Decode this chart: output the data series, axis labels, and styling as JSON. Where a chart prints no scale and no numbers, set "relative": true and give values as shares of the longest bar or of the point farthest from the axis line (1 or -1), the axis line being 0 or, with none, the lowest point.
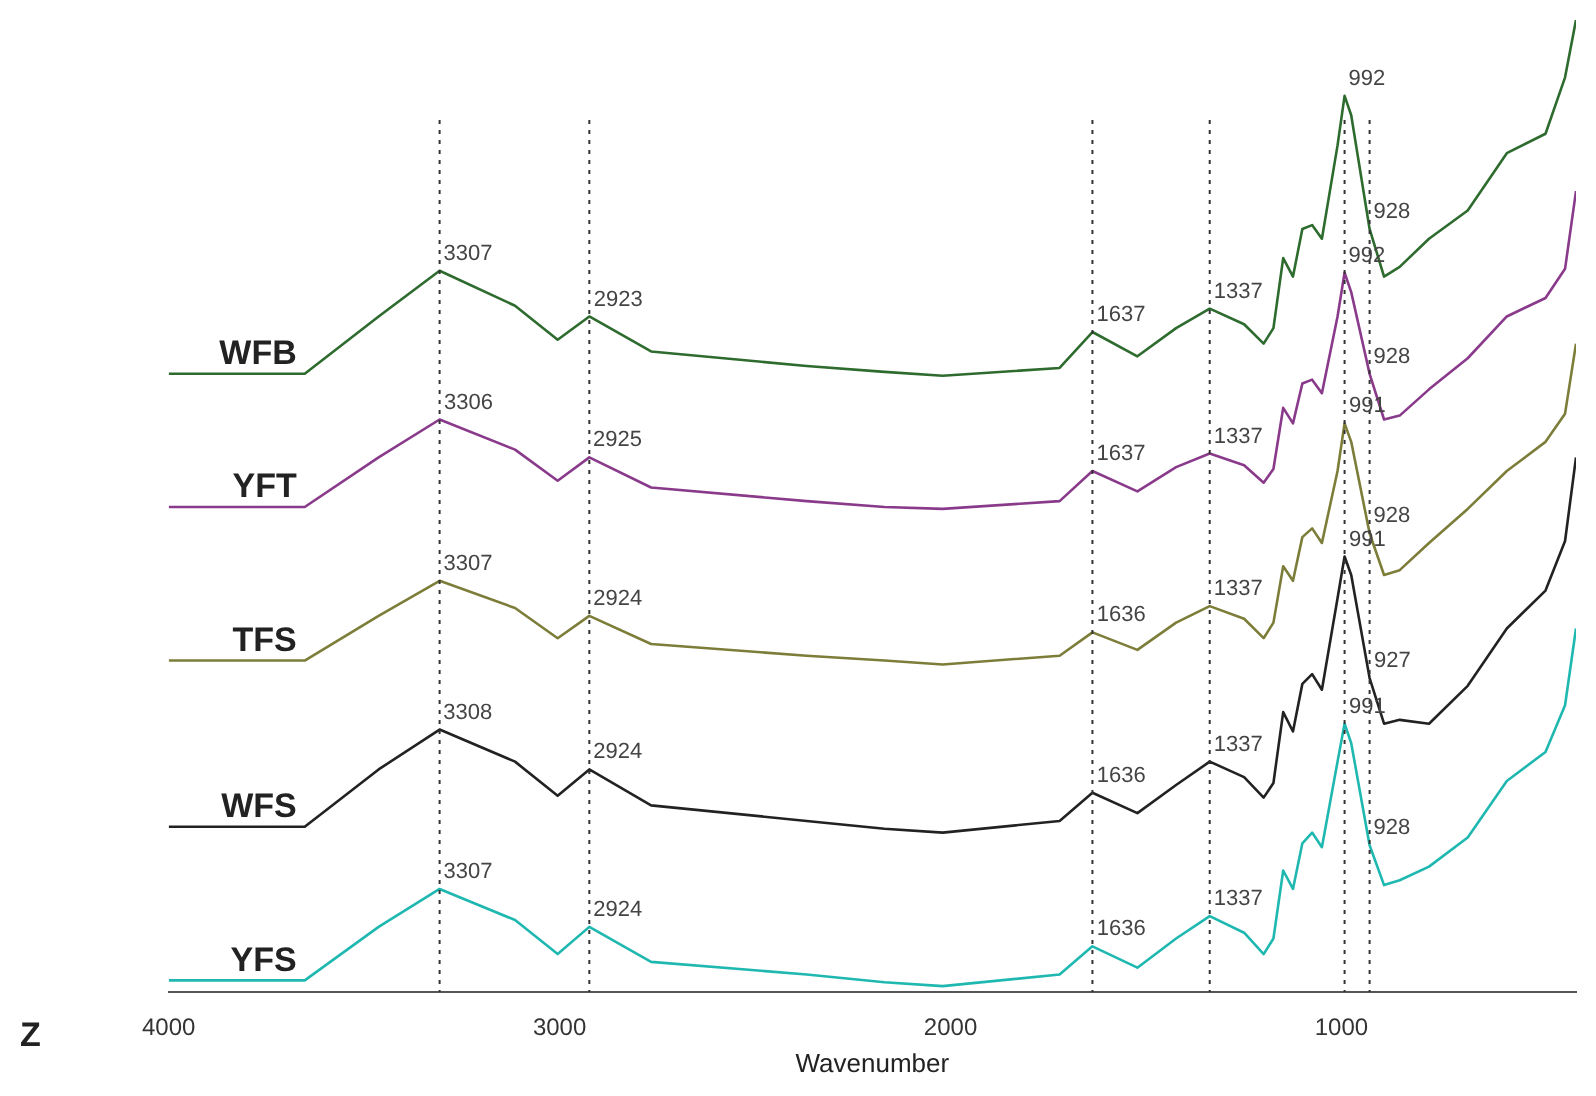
{
  "chart_data": {
    "type": "line",
    "xlabel": "Wavenumber",
    "relative": true,
    "xlim": [
      4000,
      400
    ],
    "xticks": [
      4000,
      3000,
      2000,
      1000
    ],
    "grid": false,
    "legend": false,
    "marker": "none",
    "line_style": "solid",
    "x": [
      4000,
      3652,
      3463,
      3307,
      3114,
      3005,
      2924,
      2766,
      2368,
      2169,
      2020,
      1721,
      1637,
      1522,
      1423,
      1337,
      1249,
      1199,
      1174,
      1149,
      1124,
      1100,
      1075,
      1050,
      1010,
      992,
      975,
      928,
      891,
      851,
      776,
      677,
      577,
      478,
      428,
      400
    ],
    "series": [
      {
        "name": "WFB",
        "color": "#2e6b2e",
        "values": [
          0.636,
          0.636,
          0.695,
          0.742,
          0.706,
          0.671,
          0.695,
          0.659,
          0.644,
          0.638,
          0.634,
          0.642,
          0.679,
          0.654,
          0.683,
          0.703,
          0.687,
          0.667,
          0.683,
          0.755,
          0.736,
          0.785,
          0.789,
          0.775,
          0.871,
          0.922,
          0.902,
          0.785,
          0.736,
          0.746,
          0.775,
          0.804,
          0.863,
          0.883,
          0.941,
          1.0
        ]
      },
      {
        "name": "YFT",
        "color": "#8a3a8a",
        "values": [
          0.499,
          0.499,
          0.55,
          0.589,
          0.558,
          0.526,
          0.55,
          0.519,
          0.505,
          0.499,
          0.497,
          0.505,
          0.536,
          0.515,
          0.54,
          0.554,
          0.542,
          0.524,
          0.538,
          0.601,
          0.585,
          0.626,
          0.63,
          0.616,
          0.695,
          0.74,
          0.72,
          0.636,
          0.589,
          0.593,
          0.62,
          0.652,
          0.695,
          0.714,
          0.744,
          0.824
        ]
      },
      {
        "name": "TFS",
        "color": "#7d7d3a",
        "values": [
          0.341,
          0.341,
          0.387,
          0.423,
          0.395,
          0.364,
          0.387,
          0.358,
          0.346,
          0.341,
          0.337,
          0.346,
          0.37,
          0.352,
          0.38,
          0.397,
          0.384,
          0.364,
          0.38,
          0.438,
          0.423,
          0.468,
          0.477,
          0.462,
          0.536,
          0.585,
          0.566,
          0.472,
          0.429,
          0.434,
          0.462,
          0.497,
          0.536,
          0.566,
          0.595,
          0.667
        ]
      },
      {
        "name": "WFS",
        "color": "#222222",
        "values": [
          0.17,
          0.17,
          0.229,
          0.27,
          0.237,
          0.202,
          0.229,
          0.192,
          0.176,
          0.168,
          0.164,
          0.176,
          0.205,
          0.184,
          0.213,
          0.237,
          0.221,
          0.2,
          0.215,
          0.288,
          0.268,
          0.317,
          0.327,
          0.311,
          0.405,
          0.448,
          0.429,
          0.323,
          0.276,
          0.28,
          0.276,
          0.315,
          0.374,
          0.413,
          0.464,
          0.55
        ]
      },
      {
        "name": "YFS",
        "color": "#1fb8b0",
        "values": [
          0.012,
          0.012,
          0.067,
          0.106,
          0.074,
          0.039,
          0.067,
          0.031,
          0.018,
          0.01,
          0.006,
          0.018,
          0.047,
          0.025,
          0.055,
          0.078,
          0.061,
          0.039,
          0.055,
          0.125,
          0.106,
          0.153,
          0.164,
          0.149,
          0.237,
          0.276,
          0.256,
          0.151,
          0.11,
          0.115,
          0.129,
          0.159,
          0.217,
          0.247,
          0.295,
          0.374
        ]
      }
    ],
    "ref_lines": [
      {
        "axis": "x",
        "value": 3307,
        "color": "#333333",
        "line_style": "dotted"
      },
      {
        "axis": "x",
        "value": 2924,
        "color": "#333333",
        "line_style": "dotted"
      },
      {
        "axis": "x",
        "value": 1637,
        "color": "#333333",
        "line_style": "dotted"
      },
      {
        "axis": "x",
        "value": 1337,
        "color": "#333333",
        "line_style": "dotted"
      },
      {
        "axis": "x",
        "value": 992,
        "color": "#333333",
        "line_style": "dotted"
      },
      {
        "axis": "x",
        "value": 928,
        "color": "#333333",
        "line_style": "dotted"
      }
    ],
    "annotations": [
      {
        "text": "3307",
        "x": 3307,
        "y": 0.742
      },
      {
        "text": "2923",
        "x": 2923,
        "y": 0.695
      },
      {
        "text": "1637",
        "x": 1637,
        "y": 0.679
      },
      {
        "text": "1337",
        "x": 1337,
        "y": 0.703
      },
      {
        "text": "992",
        "x": 992,
        "y": 0.922
      },
      {
        "text": "928",
        "x": 928,
        "y": 0.785
      },
      {
        "text": "3306",
        "x": 3306,
        "y": 0.589
      },
      {
        "text": "2925",
        "x": 2925,
        "y": 0.55
      },
      {
        "text": "1637",
        "x": 1637,
        "y": 0.536
      },
      {
        "text": "1337",
        "x": 1337,
        "y": 0.554
      },
      {
        "text": "992",
        "x": 992,
        "y": 0.74
      },
      {
        "text": "928",
        "x": 928,
        "y": 0.636
      },
      {
        "text": "3307",
        "x": 3307,
        "y": 0.423
      },
      {
        "text": "2924",
        "x": 2924,
        "y": 0.387
      },
      {
        "text": "1636",
        "x": 1636,
        "y": 0.37
      },
      {
        "text": "1337",
        "x": 1337,
        "y": 0.397
      },
      {
        "text": "991",
        "x": 991,
        "y": 0.585
      },
      {
        "text": "928",
        "x": 928,
        "y": 0.472
      },
      {
        "text": "3308",
        "x": 3308,
        "y": 0.27
      },
      {
        "text": "2924",
        "x": 2924,
        "y": 0.229
      },
      {
        "text": "1636",
        "x": 1636,
        "y": 0.205
      },
      {
        "text": "1337",
        "x": 1337,
        "y": 0.237
      },
      {
        "text": "991",
        "x": 991,
        "y": 0.448
      },
      {
        "text": "927",
        "x": 927,
        "y": 0.323
      },
      {
        "text": "3307",
        "x": 3307,
        "y": 0.106
      },
      {
        "text": "2924",
        "x": 2924,
        "y": 0.067
      },
      {
        "text": "1636",
        "x": 1636,
        "y": 0.047
      },
      {
        "text": "1337",
        "x": 1337,
        "y": 0.078
      },
      {
        "text": "991",
        "x": 991,
        "y": 0.276
      },
      {
        "text": "928",
        "x": 928,
        "y": 0.151
      },
      "Z"
    ]
  }
}
